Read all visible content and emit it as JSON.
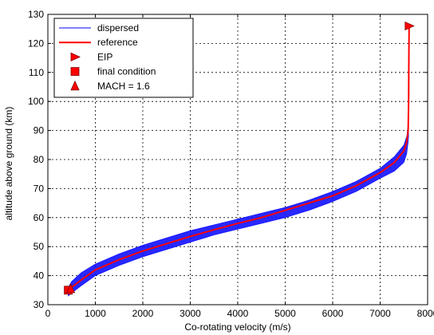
{
  "chart_data": {
    "type": "line",
    "title": "",
    "xlabel": "Co-rotating velocity (m/s)",
    "ylabel": "altitude above ground (km)",
    "xlim": [
      0,
      8000
    ],
    "ylim": [
      30,
      130
    ],
    "x_ticks": [
      0,
      1000,
      2000,
      3000,
      4000,
      5000,
      6000,
      7000,
      8000
    ],
    "y_ticks": [
      30,
      40,
      50,
      60,
      70,
      80,
      90,
      100,
      110,
      120,
      130
    ],
    "grid": true,
    "grid_style": "dotted",
    "legend_position": "top-left",
    "series": [
      {
        "name": "dispersed",
        "kind": "band",
        "color": "#0000ff",
        "x": [
          430,
          500,
          700,
          1000,
          1500,
          2000,
          2500,
          3000,
          3500,
          4000,
          4500,
          5000,
          5500,
          6000,
          6500,
          7000,
          7300,
          7500,
          7560,
          7590,
          7600
        ],
        "y_upper": [
          36,
          38,
          41,
          44,
          47.5,
          50.5,
          53,
          55.5,
          57.5,
          59.5,
          61.5,
          63.5,
          66,
          69,
          72.5,
          77,
          81,
          85,
          88,
          92,
          94
        ],
        "y_lower": [
          33,
          34,
          36.5,
          40,
          43.5,
          46.5,
          49,
          51.5,
          54,
          56,
          58,
          60,
          62.5,
          65.5,
          69,
          73.5,
          76,
          79,
          82,
          86,
          88
        ]
      },
      {
        "name": "reference",
        "kind": "line",
        "color": "#ff0000",
        "x": [
          450,
          500,
          700,
          1000,
          1500,
          2000,
          2500,
          3000,
          3500,
          4000,
          4500,
          5000,
          5500,
          6000,
          6500,
          7000,
          7300,
          7500,
          7560,
          7590,
          7600,
          7605,
          7610
        ],
        "y": [
          35,
          36,
          38.5,
          42,
          45.5,
          48.5,
          51,
          53.5,
          55.8,
          58,
          60,
          62.5,
          65,
          67.5,
          71,
          75.5,
          79,
          83,
          86,
          90,
          100,
          115,
          126
        ]
      },
      {
        "name": "EIP",
        "kind": "marker",
        "marker": "triangle-right",
        "color": "#ff0000",
        "x": [
          7610
        ],
        "y": [
          126
        ]
      },
      {
        "name": "final condition",
        "kind": "marker",
        "marker": "square",
        "color": "#ff0000",
        "x": [
          430
        ],
        "y": [
          35
        ]
      },
      {
        "name": "MACH = 1.6",
        "kind": "marker",
        "marker": "triangle-up",
        "color": "#ff0000",
        "x": [
          480
        ],
        "y": [
          35.5
        ]
      }
    ]
  }
}
